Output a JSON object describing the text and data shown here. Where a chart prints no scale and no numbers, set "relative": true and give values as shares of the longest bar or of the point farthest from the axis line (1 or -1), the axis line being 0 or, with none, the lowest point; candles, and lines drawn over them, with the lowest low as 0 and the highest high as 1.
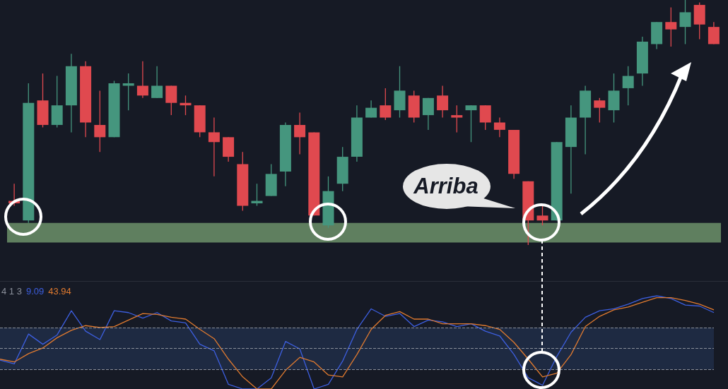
{
  "chart_data": [
    {
      "type": "candlestick",
      "relative": true,
      "categories": [
        null,
        null,
        null,
        null,
        null,
        null,
        null,
        null,
        null,
        null,
        null,
        null,
        null,
        null,
        null,
        null,
        null,
        null,
        null,
        null,
        null,
        null,
        null,
        null,
        null,
        null,
        null,
        null,
        null,
        null,
        null,
        null,
        null,
        null,
        null,
        null,
        null,
        null,
        null,
        null,
        null,
        null,
        null,
        null,
        null,
        null,
        null,
        null,
        null,
        null
      ],
      "ohlc": [
        [
          0.18,
          0.25,
          0.16,
          0.17
        ],
        [
          0.1,
          0.66,
          0.09,
          0.58
        ],
        [
          0.59,
          0.7,
          0.48,
          0.49
        ],
        [
          0.49,
          0.69,
          0.48,
          0.57
        ],
        [
          0.57,
          0.78,
          0.46,
          0.73
        ],
        [
          0.73,
          0.75,
          0.44,
          0.5
        ],
        [
          0.49,
          0.63,
          0.38,
          0.44
        ],
        [
          0.44,
          0.67,
          0.44,
          0.66
        ],
        [
          0.65,
          0.7,
          0.55,
          0.66
        ],
        [
          0.65,
          0.75,
          0.6,
          0.61
        ],
        [
          0.6,
          0.73,
          0.6,
          0.65
        ],
        [
          0.65,
          0.65,
          0.53,
          0.58
        ],
        [
          0.58,
          0.61,
          0.53,
          0.57
        ],
        [
          0.57,
          0.57,
          0.44,
          0.46
        ],
        [
          0.46,
          0.52,
          0.28,
          0.42
        ],
        [
          0.44,
          0.44,
          0.34,
          0.36
        ],
        [
          0.33,
          0.38,
          0.14,
          0.16
        ],
        [
          0.17,
          0.25,
          0.16,
          0.18
        ],
        [
          0.2,
          0.33,
          0.2,
          0.29
        ],
        [
          0.3,
          0.5,
          0.24,
          0.49
        ],
        [
          0.49,
          0.54,
          0.37,
          0.44
        ],
        [
          0.46,
          0.46,
          0.12,
          0.12
        ],
        [
          0.08,
          0.28,
          0.07,
          0.22
        ],
        [
          0.25,
          0.4,
          0.22,
          0.36
        ],
        [
          0.36,
          0.57,
          0.34,
          0.52
        ],
        [
          0.52,
          0.59,
          0.52,
          0.56
        ],
        [
          0.57,
          0.64,
          0.51,
          0.52
        ],
        [
          0.55,
          0.73,
          0.52,
          0.63
        ],
        [
          0.61,
          0.63,
          0.5,
          0.52
        ],
        [
          0.53,
          0.6,
          0.47,
          0.6
        ],
        [
          0.61,
          0.65,
          0.52,
          0.55
        ],
        [
          0.53,
          0.57,
          0.46,
          0.52
        ],
        [
          0.55,
          0.57,
          0.42,
          0.57
        ],
        [
          0.57,
          0.57,
          0.47,
          0.5
        ],
        [
          0.5,
          0.52,
          0.44,
          0.47
        ],
        [
          0.47,
          0.47,
          0.27,
          0.29
        ],
        [
          0.26,
          0.26,
          0,
          0.1
        ],
        [
          0.12,
          0.16,
          0.08,
          0.1
        ],
        [
          0.1,
          0.42,
          0.1,
          0.42
        ],
        [
          0.4,
          0.57,
          0.21,
          0.52
        ],
        [
          0.52,
          0.65,
          0.37,
          0.63
        ],
        [
          0.59,
          0.6,
          0.5,
          0.56
        ],
        [
          0.55,
          0.7,
          0.5,
          0.63
        ],
        [
          0.64,
          0.73,
          0.57,
          0.69
        ],
        [
          0.7,
          0.85,
          0.65,
          0.83
        ],
        [
          0.82,
          0.91,
          0.8,
          0.91
        ],
        [
          0.91,
          0.97,
          0.81,
          0.88
        ],
        [
          0.89,
          1,
          0.82,
          0.95
        ],
        [
          0.98,
          0.99,
          0.84,
          0.9
        ],
        [
          0.89,
          0.91,
          0.82,
          0.82
        ]
      ],
      "colors": [
        "#e0494f",
        "#45967e",
        "#e0494f",
        "#45967e",
        "#45967e",
        "#e0494f",
        "#e0494f",
        "#45967e",
        "#45967e",
        "#e0494f",
        "#45967e",
        "#e0494f",
        "#e0494f",
        "#e0494f",
        "#e0494f",
        "#e0494f",
        "#e0494f",
        "#45967e",
        "#45967e",
        "#45967e",
        "#e0494f",
        "#e0494f",
        "#45967e",
        "#45967e",
        "#45967e",
        "#45967e",
        "#e0494f",
        "#45967e",
        "#e0494f",
        "#45967e",
        "#e0494f",
        "#e0494f",
        "#45967e",
        "#e0494f",
        "#e0494f",
        "#e0494f",
        "#e0494f",
        "#e0494f",
        "#45967e",
        "#45967e",
        "#45967e",
        "#e0494f",
        "#45967e",
        "#45967e",
        "#45967e",
        "#45967e",
        "#e0494f",
        "#45967e",
        "#e0494f",
        "#e0494f"
      ],
      "bands": [
        {
          "axis": "y",
          "from": 0.01,
          "to": 0.09,
          "color": "#5f7f5f"
        }
      ],
      "annotations": [
        "Arriba"
      ]
    },
    {
      "type": "line",
      "relative": true,
      "legend": "top left",
      "legend_title": "4 1 3",
      "line_style": "solid",
      "marker": "none",
      "categories": [
        null,
        null,
        null,
        null,
        null,
        null,
        null,
        null,
        null,
        null,
        null,
        null,
        null,
        null,
        null,
        null,
        null,
        null,
        null,
        null,
        null,
        null,
        null,
        null,
        null,
        null,
        null,
        null,
        null,
        null,
        null,
        null,
        null,
        null,
        null,
        null,
        null,
        null,
        null,
        null,
        null,
        null,
        null,
        null,
        null,
        null,
        null,
        null,
        null,
        null,
        null
      ],
      "series": [
        {
          "name": "9.09",
          "color": "#3d5fe0",
          "values": [
            0.31,
            0.27,
            0.59,
            0.48,
            0.58,
            0.84,
            0.62,
            0.53,
            0.84,
            0.82,
            0.76,
            0.82,
            0.73,
            0.71,
            0.48,
            0.41,
            0.05,
            0,
            0,
            0.12,
            0.51,
            0.43,
            0,
            0.05,
            0.3,
            0.64,
            0.86,
            0.78,
            0.81,
            0.67,
            0.74,
            0.72,
            0.67,
            0.7,
            0.62,
            0.57,
            0.37,
            0.12,
            0.04,
            0.35,
            0.61,
            0.77,
            0.84,
            0.86,
            0.91,
            0.97,
            1,
            0.97,
            0.9,
            0.89,
            0.82
          ]
        },
        {
          "name": "43.94",
          "color": "#e07a2f",
          "values": [
            0.32,
            0.29,
            0.38,
            0.44,
            0.55,
            0.63,
            0.68,
            0.66,
            0.67,
            0.74,
            0.81,
            0.8,
            0.77,
            0.75,
            0.64,
            0.54,
            0.32,
            0.13,
            0,
            0,
            0.2,
            0.34,
            0.29,
            0.15,
            0.13,
            0.37,
            0.64,
            0.79,
            0.83,
            0.75,
            0.75,
            0.7,
            0.7,
            0.7,
            0.68,
            0.64,
            0.5,
            0.32,
            0.13,
            0.17,
            0.37,
            0.67,
            0.78,
            0.85,
            0.88,
            0.93,
            0.98,
            0.98,
            0.95,
            0.91,
            0.85
          ]
        }
      ],
      "ref_lines": [
        {
          "axis": "y",
          "value": 0.66,
          "color": "#8a8f9a",
          "line_style": "dashed"
        },
        {
          "axis": "y",
          "value": 0.44,
          "color": "#8a8f9a",
          "line_style": "dashed"
        },
        {
          "axis": "y",
          "value": 0.21,
          "color": "#8a8f9a",
          "line_style": "dashed"
        }
      ],
      "bands": [
        {
          "axis": "y",
          "from": 0.21,
          "to": 0.66,
          "color": "#1e2a42"
        }
      ]
    }
  ]
}
